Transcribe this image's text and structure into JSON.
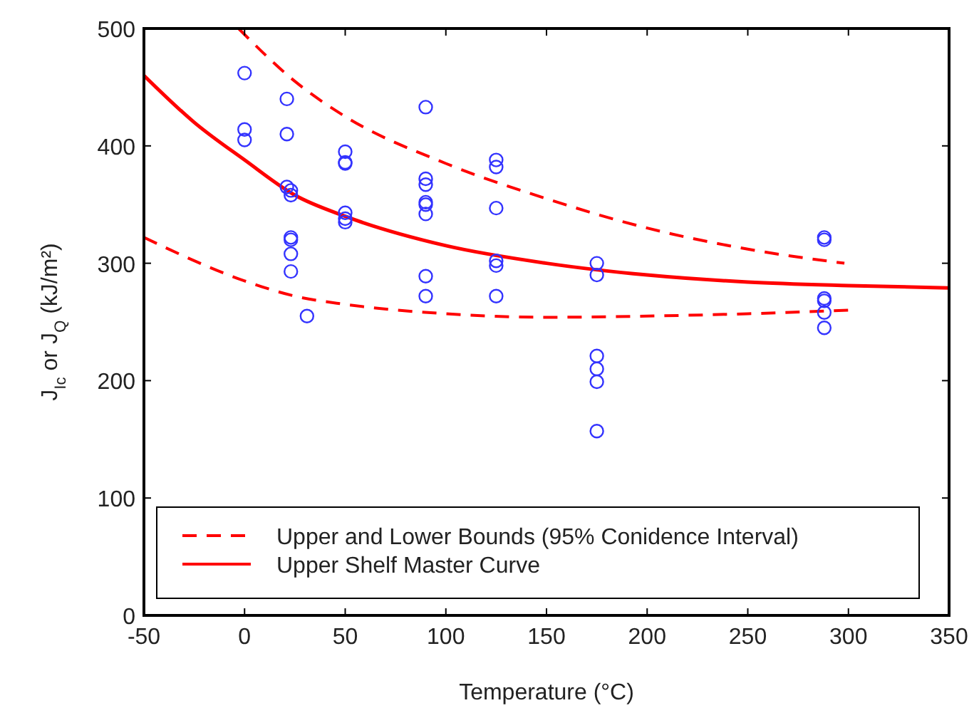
{
  "chart_data": {
    "type": "scatter",
    "xlabel": "Temperature (°C)",
    "ylabel": "J$_{Ic}$ or J$_{Q}$ (kJ/m²)",
    "xlim": [
      -50,
      350
    ],
    "ylim": [
      0,
      500
    ],
    "xticks": [
      -50,
      0,
      50,
      100,
      150,
      200,
      250,
      300,
      350
    ],
    "yticks": [
      0,
      100,
      200,
      300,
      400,
      500
    ],
    "grid": false,
    "legend": "bottom",
    "series": [
      {
        "color": "#3333ff",
        "marker": "circle",
        "x": [
          0,
          0,
          0,
          21,
          21,
          21,
          23,
          23,
          23,
          23,
          23,
          23,
          31,
          50,
          50,
          50,
          50,
          50,
          50,
          90,
          90,
          90,
          90,
          90,
          90,
          90,
          90,
          125,
          125,
          125,
          125,
          125,
          125,
          175,
          175,
          175,
          175,
          175,
          175,
          288,
          288,
          288,
          288,
          288,
          288
        ],
        "values": [
          462,
          414,
          405,
          440,
          410,
          365,
          362,
          358,
          322,
          320,
          308,
          293,
          255,
          395,
          386,
          385,
          343,
          338,
          335,
          433,
          372,
          367,
          352,
          350,
          342,
          289,
          272,
          388,
          382,
          347,
          302,
          298,
          272,
          300,
          290,
          221,
          210,
          199,
          157,
          322,
          320,
          270,
          268,
          258,
          245
        ]
      },
      {
        "type": "line",
        "name": "Upper and Lower Bounds (95% Conidence Interval)",
        "color": "#ff0000",
        "line_style": "dashed",
        "x": [
          -3,
          25,
          50,
          100,
          150,
          200,
          250,
          298
        ],
        "values": [
          500,
          455,
          425,
          385,
          355,
          330,
          312,
          300
        ]
      },
      {
        "type": "line",
        "color": "#ff0000",
        "line_style": "dashed",
        "x": [
          -50,
          0,
          25,
          50,
          100,
          150,
          200,
          250,
          300
        ],
        "values": [
          322,
          285,
          272,
          265,
          257,
          254,
          255,
          257,
          260
        ]
      },
      {
        "type": "line",
        "name": "Upper Shelf Master Curve",
        "color": "#ff0000",
        "line_style": "solid",
        "x": [
          -50,
          -25,
          0,
          25,
          50,
          100,
          150,
          200,
          250,
          300,
          350
        ],
        "values": [
          460,
          420,
          388,
          358,
          340,
          315,
          300,
          290,
          284,
          281,
          279
        ]
      }
    ]
  }
}
